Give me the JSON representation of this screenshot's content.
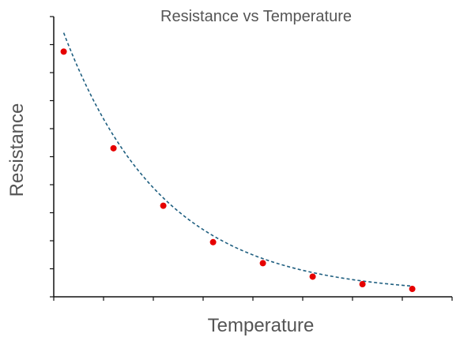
{
  "chart_data": {
    "type": "scatter",
    "title": "Resistance vs Temperature",
    "xlabel": "Temperature",
    "ylabel": "Resistance",
    "xlim": [
      0,
      8
    ],
    "ylim": [
      0,
      10
    ],
    "x_ticks": [
      0,
      1,
      2,
      3,
      4,
      5,
      6,
      7,
      8
    ],
    "y_ticks": [
      0,
      1,
      2,
      3,
      4,
      5,
      6,
      7,
      8,
      9,
      10
    ],
    "tick_labels_shown": false,
    "grid": false,
    "series": [
      {
        "color": "#e60000",
        "marker": "circle",
        "x": [
          0.2,
          1.2,
          2.2,
          3.2,
          4.2,
          5.2,
          6.2,
          7.2
        ],
        "y": [
          8.75,
          5.3,
          3.25,
          1.95,
          1.2,
          0.72,
          0.45,
          0.28
        ]
      }
    ],
    "trend_curve": {
      "style": "dashed",
      "color": "#1f5f80",
      "model": "exponential-decay",
      "a": 0.1,
      "b": 10.3,
      "k": 0.5
    }
  }
}
